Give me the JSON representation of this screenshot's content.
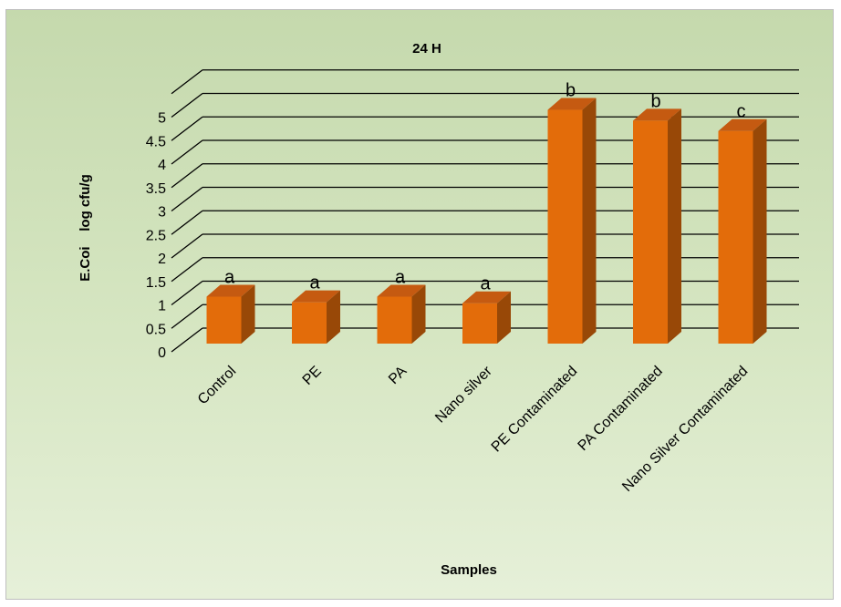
{
  "chart_data": {
    "type": "bar",
    "title": "24 H",
    "xlabel": "Samples",
    "ylabel": "E.Coi    log cfu/g",
    "categories": [
      "Control",
      "PE",
      "PA",
      "Nano silver",
      "PE Contaminated",
      "PA Contaminated",
      "Nano Silver Contaminated"
    ],
    "values": [
      1.0,
      0.88,
      1.0,
      0.86,
      4.98,
      4.75,
      4.53
    ],
    "labels": [
      "a",
      "a",
      "a",
      "a",
      "b",
      "b",
      "c"
    ],
    "yticks": [
      "0",
      "0.5",
      "1",
      "1.5",
      "2",
      "2.5",
      "3",
      "3.5",
      "4",
      "4.5",
      "5"
    ],
    "ylim": [
      0,
      5.5
    ],
    "grid": true,
    "legend": "none",
    "three_d": true,
    "colors": {
      "bar_front": "#e36c0a",
      "bar_top": "#c55a11",
      "bar_side": "#984807",
      "background": "#d6e6c2",
      "grid": "#000000"
    }
  }
}
